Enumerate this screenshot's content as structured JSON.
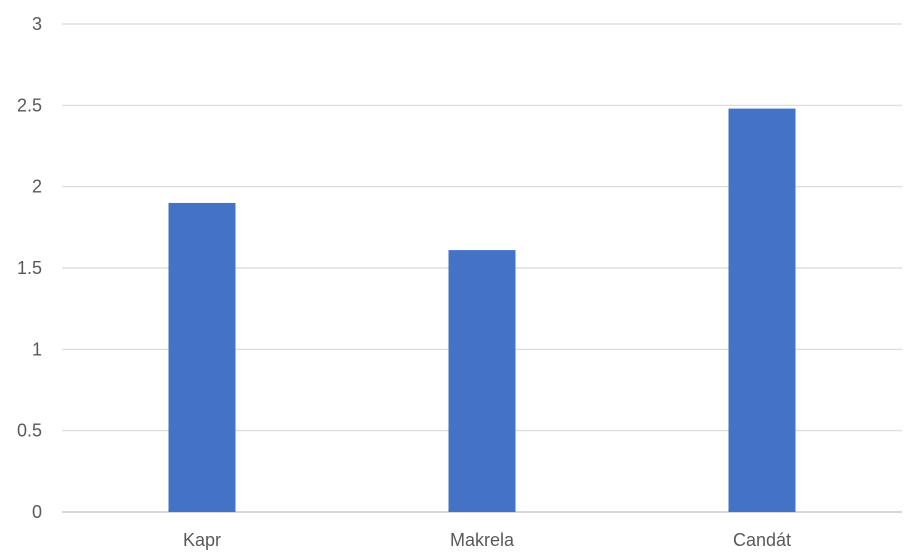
{
  "chart_data": {
    "type": "bar",
    "title": "",
    "xlabel": "",
    "ylabel": "",
    "categories": [
      "Kapr",
      "Makrela",
      "Candát"
    ],
    "values": [
      1.9,
      1.61,
      2.48
    ],
    "ylim": [
      0,
      3
    ],
    "yticks": [
      "0",
      "0.5",
      "1",
      "1.5",
      "2",
      "2.5",
      "3"
    ],
    "bar_color": "#4472c4",
    "grid": true,
    "legend": "none"
  }
}
